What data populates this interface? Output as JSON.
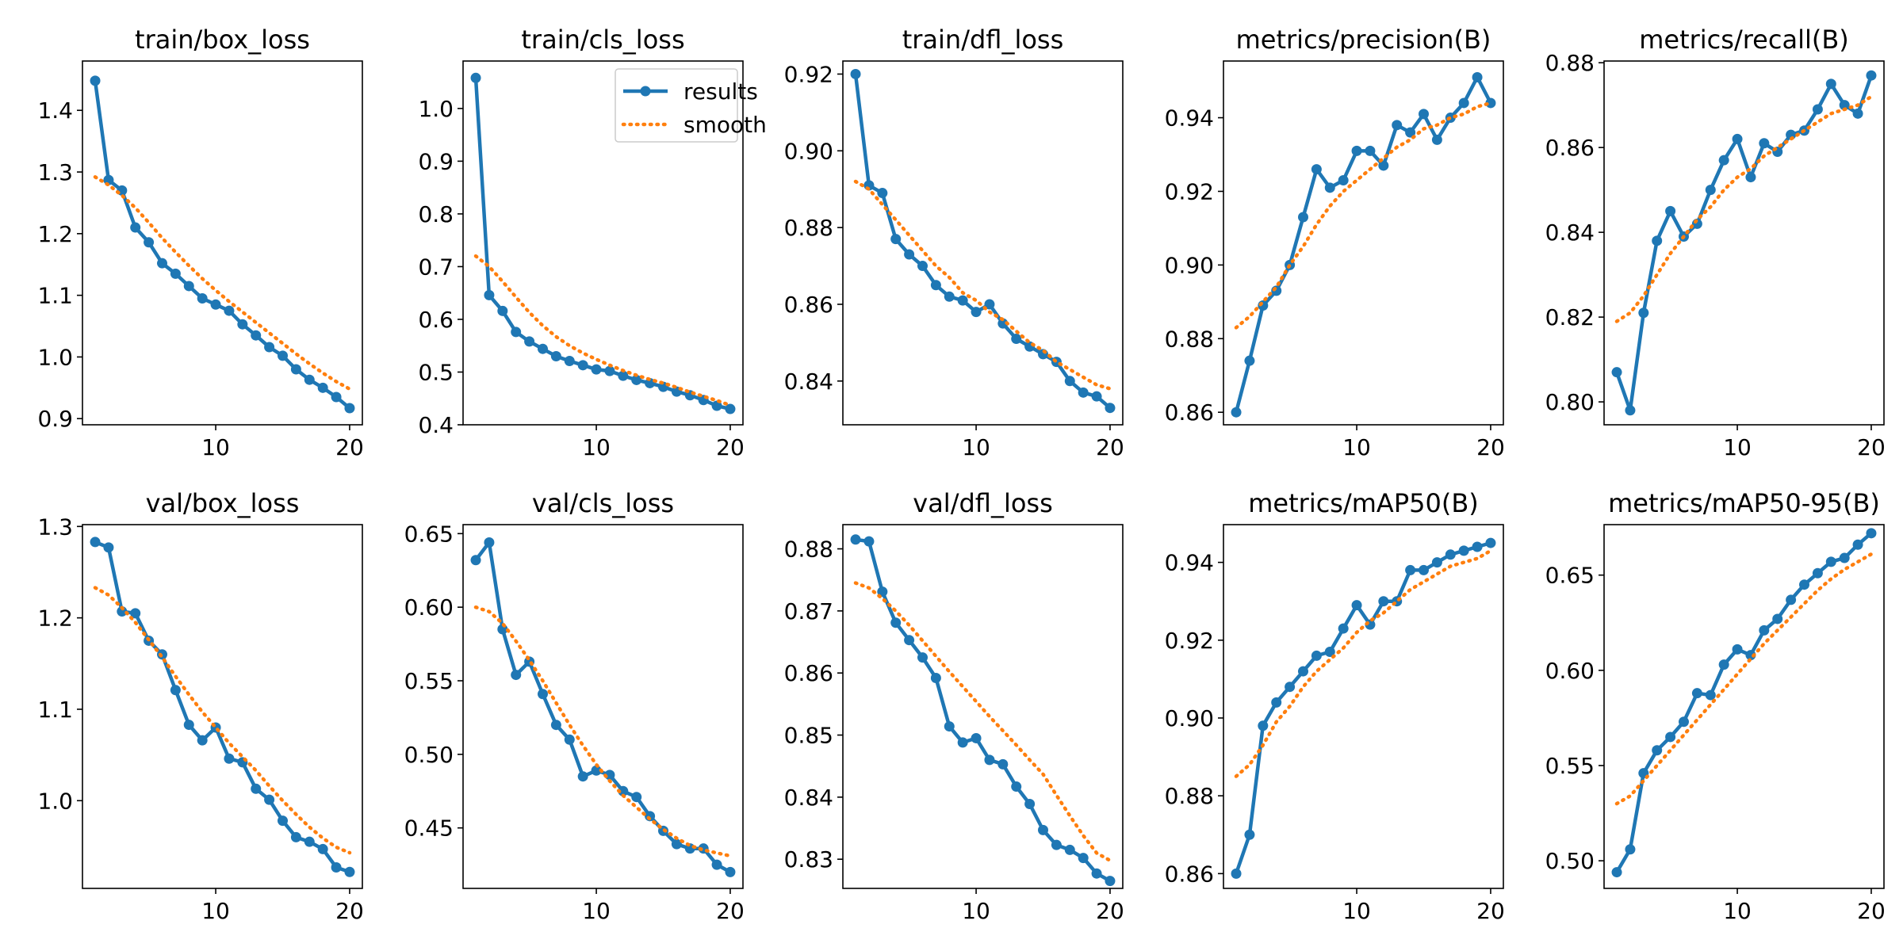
{
  "figure": {
    "background": "#ffffff"
  },
  "style": {
    "results_color": "#1f77b4",
    "smooth_color": "#ff7f0e"
  },
  "legend": {
    "results": "results",
    "smooth": "smooth"
  },
  "chart_data": [
    {
      "type": "line",
      "title": "train/box_loss",
      "x": [
        1,
        2,
        3,
        4,
        5,
        6,
        7,
        8,
        9,
        10,
        11,
        12,
        13,
        14,
        15,
        16,
        17,
        18,
        19,
        20
      ],
      "xticks": [
        10,
        20
      ],
      "ylim": [
        0.89,
        1.48
      ],
      "yticks": [
        0.9,
        1.0,
        1.1,
        1.2,
        1.3,
        1.4
      ],
      "ytick_decimals": 1,
      "series": [
        {
          "name": "results",
          "values": [
            1.448,
            1.287,
            1.27,
            1.21,
            1.186,
            1.152,
            1.135,
            1.115,
            1.095,
            1.085,
            1.075,
            1.053,
            1.035,
            1.016,
            1.002,
            0.98,
            0.963,
            0.95,
            0.935,
            0.917
          ]
        },
        {
          "name": "smooth",
          "values": [
            1.292,
            1.279,
            1.262,
            1.242,
            1.218,
            1.193,
            1.17,
            1.148,
            1.127,
            1.108,
            1.09,
            1.073,
            1.056,
            1.039,
            1.022,
            1.005,
            0.989,
            0.974,
            0.96,
            0.948
          ]
        }
      ]
    },
    {
      "type": "line",
      "title": "train/cls_loss",
      "legend": true,
      "x": [
        1,
        2,
        3,
        4,
        5,
        6,
        7,
        8,
        9,
        10,
        11,
        12,
        13,
        14,
        15,
        16,
        17,
        18,
        19,
        20
      ],
      "xticks": [
        10,
        20
      ],
      "ylim": [
        0.4,
        1.09
      ],
      "yticks": [
        0.4,
        0.5,
        0.6,
        0.7,
        0.8,
        0.9,
        1.0
      ],
      "ytick_decimals": 1,
      "series": [
        {
          "name": "results",
          "values": [
            1.058,
            0.646,
            0.616,
            0.576,
            0.558,
            0.544,
            0.53,
            0.521,
            0.513,
            0.505,
            0.502,
            0.493,
            0.485,
            0.479,
            0.472,
            0.463,
            0.456,
            0.447,
            0.436,
            0.43
          ]
        },
        {
          "name": "smooth",
          "values": [
            0.72,
            0.7,
            0.672,
            0.642,
            0.613,
            0.588,
            0.567,
            0.55,
            0.536,
            0.524,
            0.513,
            0.503,
            0.494,
            0.486,
            0.479,
            0.471,
            0.462,
            0.454,
            0.446,
            0.437
          ]
        }
      ]
    },
    {
      "type": "line",
      "title": "train/dfl_loss",
      "x": [
        1,
        2,
        3,
        4,
        5,
        6,
        7,
        8,
        9,
        10,
        11,
        12,
        13,
        14,
        15,
        16,
        17,
        18,
        19,
        20
      ],
      "xticks": [
        10,
        20
      ],
      "ylim": [
        0.8286,
        0.9234
      ],
      "yticks": [
        0.84,
        0.86,
        0.88,
        0.9,
        0.92
      ],
      "ytick_decimals": 2,
      "series": [
        {
          "name": "results",
          "values": [
            0.92,
            0.891,
            0.889,
            0.877,
            0.873,
            0.87,
            0.865,
            0.862,
            0.861,
            0.858,
            0.86,
            0.855,
            0.851,
            0.849,
            0.847,
            0.845,
            0.84,
            0.837,
            0.836,
            0.833
          ]
        },
        {
          "name": "smooth",
          "values": [
            0.892,
            0.89,
            0.886,
            0.882,
            0.878,
            0.874,
            0.87,
            0.867,
            0.863,
            0.861,
            0.858,
            0.856,
            0.853,
            0.85,
            0.848,
            0.845,
            0.843,
            0.841,
            0.839,
            0.838
          ]
        }
      ]
    },
    {
      "type": "line",
      "title": "metrics/precision(B)",
      "x": [
        1,
        2,
        3,
        4,
        5,
        6,
        7,
        8,
        9,
        10,
        11,
        12,
        13,
        14,
        15,
        16,
        17,
        18,
        19,
        20
      ],
      "xticks": [
        10,
        20
      ],
      "ylim": [
        0.8566,
        0.9554
      ],
      "yticks": [
        0.86,
        0.88,
        0.9,
        0.92,
        0.94
      ],
      "ytick_decimals": 2,
      "series": [
        {
          "name": "results",
          "values": [
            0.86,
            0.874,
            0.889,
            0.893,
            0.9,
            0.913,
            0.926,
            0.921,
            0.923,
            0.931,
            0.931,
            0.927,
            0.938,
            0.936,
            0.941,
            0.934,
            0.94,
            0.944,
            0.951,
            0.944
          ]
        },
        {
          "name": "smooth",
          "values": [
            0.883,
            0.886,
            0.89,
            0.894,
            0.9,
            0.905,
            0.911,
            0.916,
            0.92,
            0.923,
            0.926,
            0.929,
            0.932,
            0.934,
            0.937,
            0.938,
            0.94,
            0.941,
            0.943,
            0.944
          ]
        }
      ]
    },
    {
      "type": "line",
      "title": "metrics/recall(B)",
      "x": [
        1,
        2,
        3,
        4,
        5,
        6,
        7,
        8,
        9,
        10,
        11,
        12,
        13,
        14,
        15,
        16,
        17,
        18,
        19,
        20
      ],
      "xticks": [
        10,
        20
      ],
      "ylim": [
        0.7946,
        0.8804
      ],
      "yticks": [
        0.8,
        0.82,
        0.84,
        0.86,
        0.88
      ],
      "ytick_decimals": 2,
      "series": [
        {
          "name": "results",
          "values": [
            0.807,
            0.798,
            0.821,
            0.838,
            0.845,
            0.839,
            0.842,
            0.85,
            0.857,
            0.862,
            0.853,
            0.861,
            0.859,
            0.863,
            0.864,
            0.869,
            0.875,
            0.87,
            0.868,
            0.877
          ]
        },
        {
          "name": "smooth",
          "values": [
            0.819,
            0.821,
            0.825,
            0.83,
            0.835,
            0.839,
            0.843,
            0.846,
            0.85,
            0.853,
            0.855,
            0.858,
            0.86,
            0.862,
            0.864,
            0.866,
            0.868,
            0.869,
            0.87,
            0.872
          ]
        }
      ]
    },
    {
      "type": "line",
      "title": "val/box_loss",
      "x": [
        1,
        2,
        3,
        4,
        5,
        6,
        7,
        8,
        9,
        10,
        11,
        12,
        13,
        14,
        15,
        16,
        17,
        18,
        19,
        20
      ],
      "xticks": [
        10,
        20
      ],
      "ylim": [
        0.904,
        1.302
      ],
      "yticks": [
        1.0,
        1.1,
        1.2,
        1.3
      ],
      "ytick_decimals": 1,
      "series": [
        {
          "name": "results",
          "values": [
            1.283,
            1.277,
            1.207,
            1.205,
            1.175,
            1.16,
            1.121,
            1.083,
            1.066,
            1.08,
            1.046,
            1.042,
            1.013,
            1.001,
            0.978,
            0.96,
            0.955,
            0.947,
            0.927,
            0.922
          ]
        },
        {
          "name": "smooth",
          "values": [
            1.233,
            1.225,
            1.211,
            1.195,
            1.176,
            1.157,
            1.136,
            1.116,
            1.097,
            1.08,
            1.063,
            1.048,
            1.033,
            1.016,
            1.0,
            0.985,
            0.971,
            0.959,
            0.949,
            0.943
          ]
        }
      ]
    },
    {
      "type": "line",
      "title": "val/cls_loss",
      "x": [
        1,
        2,
        3,
        4,
        5,
        6,
        7,
        8,
        9,
        10,
        11,
        12,
        13,
        14,
        15,
        16,
        17,
        18,
        19,
        20
      ],
      "xticks": [
        10,
        20
      ],
      "ylim": [
        0.4089,
        0.6561
      ],
      "yticks": [
        0.45,
        0.5,
        0.55,
        0.6,
        0.65
      ],
      "ytick_decimals": 2,
      "series": [
        {
          "name": "results",
          "values": [
            0.632,
            0.644,
            0.585,
            0.554,
            0.563,
            0.541,
            0.52,
            0.51,
            0.485,
            0.489,
            0.486,
            0.475,
            0.471,
            0.458,
            0.448,
            0.439,
            0.436,
            0.436,
            0.425,
            0.42
          ]
        },
        {
          "name": "smooth",
          "values": [
            0.6,
            0.597,
            0.589,
            0.577,
            0.564,
            0.55,
            0.535,
            0.52,
            0.506,
            0.493,
            0.482,
            0.472,
            0.464,
            0.456,
            0.449,
            0.443,
            0.438,
            0.435,
            0.433,
            0.431
          ]
        }
      ]
    },
    {
      "type": "line",
      "title": "val/dfl_loss",
      "x": [
        1,
        2,
        3,
        4,
        5,
        6,
        7,
        8,
        9,
        10,
        11,
        12,
        13,
        14,
        15,
        16,
        17,
        18,
        19,
        20
      ],
      "xticks": [
        10,
        20
      ],
      "ylim": [
        0.8253,
        0.8839
      ],
      "yticks": [
        0.83,
        0.84,
        0.85,
        0.86,
        0.87,
        0.88
      ],
      "ytick_decimals": 2,
      "series": [
        {
          "name": "results",
          "values": [
            0.8815,
            0.8812,
            0.8731,
            0.8681,
            0.8653,
            0.8625,
            0.8592,
            0.8514,
            0.8488,
            0.8495,
            0.846,
            0.8453,
            0.8417,
            0.8389,
            0.8347,
            0.8323,
            0.8315,
            0.8302,
            0.8277,
            0.8265
          ]
        },
        {
          "name": "smooth",
          "values": [
            0.8745,
            0.8737,
            0.872,
            0.87,
            0.8677,
            0.8652,
            0.8627,
            0.8602,
            0.8578,
            0.8554,
            0.853,
            0.8507,
            0.8484,
            0.846,
            0.8437,
            0.8403,
            0.837,
            0.8338,
            0.831,
            0.8298
          ]
        }
      ]
    },
    {
      "type": "line",
      "title": "metrics/mAP50(B)",
      "x": [
        1,
        2,
        3,
        4,
        5,
        6,
        7,
        8,
        9,
        10,
        11,
        12,
        13,
        14,
        15,
        16,
        17,
        18,
        19,
        20
      ],
      "xticks": [
        10,
        20
      ],
      "ylim": [
        0.8562,
        0.9497
      ],
      "yticks": [
        0.86,
        0.88,
        0.9,
        0.92,
        0.94
      ],
      "ytick_decimals": 2,
      "series": [
        {
          "name": "results",
          "values": [
            0.86,
            0.87,
            0.898,
            0.904,
            0.908,
            0.912,
            0.916,
            0.917,
            0.923,
            0.929,
            0.924,
            0.93,
            0.93,
            0.938,
            0.938,
            0.94,
            0.942,
            0.943,
            0.944,
            0.945
          ]
        },
        {
          "name": "smooth",
          "values": [
            0.885,
            0.888,
            0.893,
            0.899,
            0.903,
            0.908,
            0.912,
            0.915,
            0.918,
            0.922,
            0.925,
            0.927,
            0.93,
            0.933,
            0.935,
            0.937,
            0.939,
            0.94,
            0.941,
            0.943
          ]
        }
      ]
    },
    {
      "type": "line",
      "title": "metrics/mAP50-95(B)",
      "x": [
        1,
        2,
        3,
        4,
        5,
        6,
        7,
        8,
        9,
        10,
        11,
        12,
        13,
        14,
        15,
        16,
        17,
        18,
        19,
        20
      ],
      "xticks": [
        10,
        20
      ],
      "ylim": [
        0.4855,
        0.6765
      ],
      "yticks": [
        0.5,
        0.55,
        0.6,
        0.65
      ],
      "ytick_decimals": 2,
      "series": [
        {
          "name": "results",
          "values": [
            0.494,
            0.506,
            0.546,
            0.558,
            0.565,
            0.573,
            0.588,
            0.587,
            0.603,
            0.611,
            0.608,
            0.621,
            0.627,
            0.637,
            0.645,
            0.651,
            0.657,
            0.659,
            0.666,
            0.672
          ]
        },
        {
          "name": "smooth",
          "values": [
            0.53,
            0.534,
            0.542,
            0.55,
            0.558,
            0.566,
            0.574,
            0.582,
            0.59,
            0.598,
            0.606,
            0.614,
            0.621,
            0.628,
            0.635,
            0.642,
            0.648,
            0.653,
            0.657,
            0.661
          ]
        }
      ]
    }
  ]
}
